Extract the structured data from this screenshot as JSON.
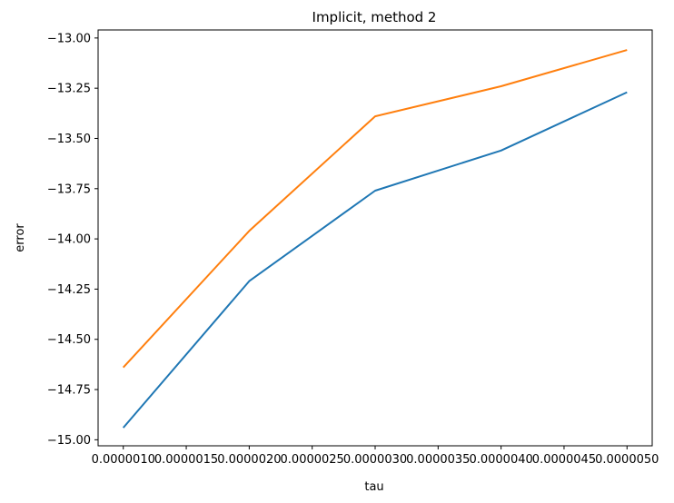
{
  "chart_data": {
    "type": "line",
    "title": "Implicit, method 2",
    "xlabel": "tau",
    "ylabel": "error",
    "x": [
      1e-06,
      2e-06,
      3e-06,
      4e-06,
      5e-06
    ],
    "x_tick_values": [
      1e-06,
      1.5e-06,
      2e-06,
      2.5e-06,
      3e-06,
      3.5e-06,
      4e-06,
      4.5e-06,
      5e-06
    ],
    "x_tick_labels": [
      "0.0000010",
      "0.0000015",
      "0.0000020",
      "0.0000025",
      "0.0000030",
      "0.0000035",
      "0.0000040",
      "0.0000045",
      "0.0000050"
    ],
    "y_tick_values": [
      -15.0,
      -14.75,
      -14.5,
      -14.25,
      -14.0,
      -13.75,
      -13.5,
      -13.25,
      -13.0
    ],
    "y_tick_labels": [
      "−15.00",
      "−14.75",
      "−14.50",
      "−14.25",
      "−14.00",
      "−13.75",
      "−13.50",
      "−13.25",
      "−13.00"
    ],
    "xlim": [
      8e-07,
      5.2e-06
    ],
    "ylim": [
      -15.03,
      -12.96
    ],
    "grid": false,
    "series": [
      {
        "color": "#1f77b4",
        "values": [
          -14.94,
          -14.21,
          -13.76,
          -13.56,
          -13.27
        ]
      },
      {
        "color": "#ff7f0e",
        "values": [
          -14.64,
          -13.96,
          -13.39,
          -13.24,
          -13.06
        ]
      }
    ]
  }
}
